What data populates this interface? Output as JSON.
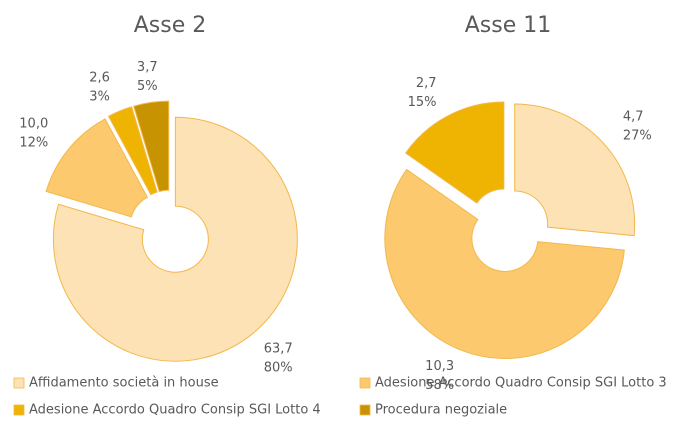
{
  "legend": {
    "entries": [
      "Affidamento società in house",
      "Adesione Accordo Quadro Consip SGI Lotto 3",
      "Adesione Accordo Quadro Consip SGI Lotto 4",
      "Procedura negoziale"
    ],
    "colors": [
      "#fde2b5",
      "#fcc96e",
      "#efb301",
      "#c89300"
    ]
  },
  "chart_data": [
    {
      "type": "pie",
      "title": "Asse 2",
      "values": [
        63.7,
        10.0,
        2.6,
        3.7
      ],
      "value_labels": [
        "63,7",
        "10,0",
        "2,6",
        "3,7"
      ],
      "percents": [
        80,
        12,
        3,
        5
      ],
      "percent_labels": [
        "80%",
        "12%",
        "3%",
        "5%"
      ],
      "colors": [
        "#fde2b5",
        "#fcc96e",
        "#efb301",
        "#c89300"
      ]
    },
    {
      "type": "pie",
      "title": "Asse 11",
      "values": [
        4.7,
        10.3,
        2.7
      ],
      "value_labels": [
        "4,7",
        "10,3",
        "2,7"
      ],
      "percents": [
        27,
        58,
        15
      ],
      "percent_labels": [
        "27%",
        "58%",
        "15%"
      ],
      "colors": [
        "#fde2b5",
        "#fcc96e",
        "#efb301"
      ]
    }
  ]
}
